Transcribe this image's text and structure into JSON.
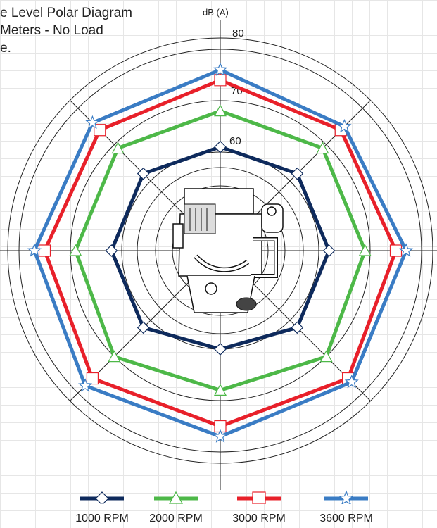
{
  "title_lines": [
    "e Level Polar Diagram",
    " Meters -  No Load",
    "e."
  ],
  "chart_data": {
    "type": "radar",
    "title": "e Level Polar Diagram  Meters -  No Load e.",
    "ylabel": "dB (A)",
    "ring_labels": [
      "60",
      "70",
      "80"
    ],
    "directions": 8,
    "series": [
      {
        "name": "1000 RPM",
        "color": "#0e2a5c",
        "marker": "diamond",
        "values": [
          61,
          62,
          62,
          62,
          60,
          62,
          62,
          62
        ]
      },
      {
        "name": "2000 RPM",
        "color": "#4db848",
        "marker": "triangle",
        "values": [
          68,
          69,
          69,
          70,
          68,
          70,
          69,
          69
        ]
      },
      {
        "name": "3000 RPM",
        "color": "#e8202a",
        "marker": "square",
        "values": [
          74,
          74,
          75,
          76,
          75,
          76,
          75,
          74
        ]
      },
      {
        "name": "3600 RPM",
        "color": "#3a7cc4",
        "marker": "star",
        "values": [
          76,
          75,
          77,
          77,
          77,
          78,
          77,
          76
        ]
      }
    ]
  }
}
